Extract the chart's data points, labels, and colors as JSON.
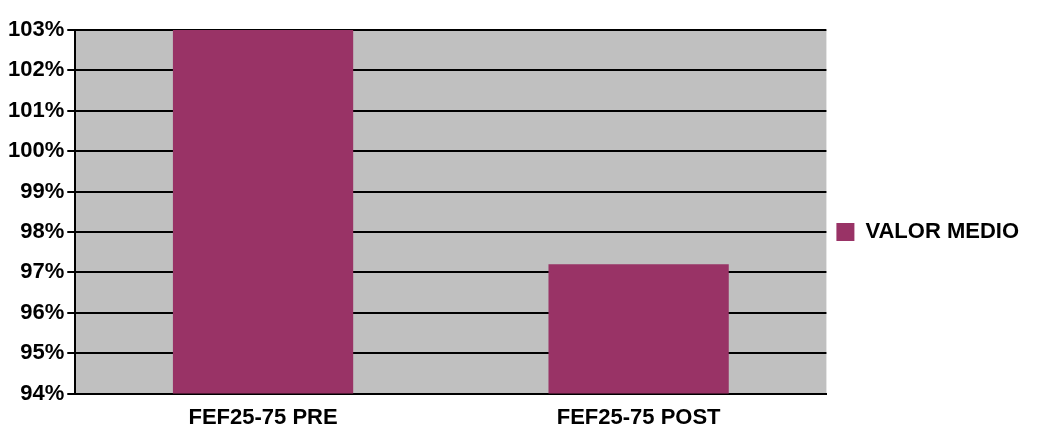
{
  "chart_data": {
    "type": "bar",
    "categories": [
      "FEF25-75 PRE",
      "FEF25-75 POST"
    ],
    "series": [
      {
        "name": "VALOR MEDIO",
        "color": "#993366",
        "values": [
          103,
          97.2
        ]
      }
    ],
    "ylim": [
      94,
      103
    ],
    "yticks": [
      {
        "value": 94,
        "label": "94%"
      },
      {
        "value": 95,
        "label": "95%"
      },
      {
        "value": 96,
        "label": "96%"
      },
      {
        "value": 97,
        "label": "97%"
      },
      {
        "value": 98,
        "label": "98%"
      },
      {
        "value": 99,
        "label": "99%"
      },
      {
        "value": 100,
        "label": "100%"
      },
      {
        "value": 101,
        "label": "101%"
      },
      {
        "value": 102,
        "label": "102%"
      },
      {
        "value": 103,
        "label": "103%"
      }
    ],
    "grid": "y",
    "legend": "right"
  }
}
